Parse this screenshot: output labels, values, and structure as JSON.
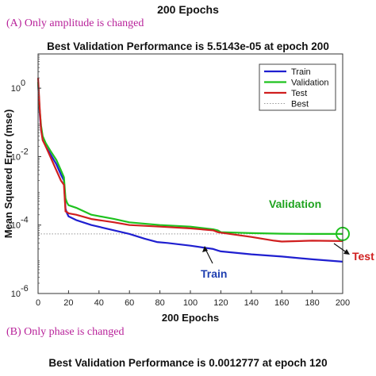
{
  "header": {
    "top_title": "200 Epochs",
    "caption_a": "(A) Only amplitude is changed",
    "caption_b": "(B) Only phase is changed",
    "second_title": "Best Validation Performance is 0.0012777 at epoch 120"
  },
  "chart_data": {
    "type": "line",
    "title": "Best Validation Performance is 5.5143e-05 at epoch 200",
    "xlabel": "200 Epochs",
    "ylabel": "Mean Squared Error  (mse)",
    "xlim": [
      0,
      200
    ],
    "ylim": [
      1e-06,
      10
    ],
    "yscale": "log",
    "x_ticks": [
      0,
      20,
      40,
      60,
      80,
      100,
      120,
      140,
      160,
      180,
      200
    ],
    "y_ticks": [
      {
        "value": 1,
        "label": "10",
        "exp": "0"
      },
      {
        "value": 0.01,
        "label": "10",
        "exp": "-2"
      },
      {
        "value": 0.0001,
        "label": "10",
        "exp": "-4"
      },
      {
        "value": 1e-06,
        "label": "10",
        "exp": "-6"
      }
    ],
    "legend_position": "top-right",
    "best": {
      "epoch": 200,
      "value": 5.5143e-05,
      "name": "Best"
    },
    "series": [
      {
        "name": "Train",
        "color": "#1f1fd0",
        "x": [
          0,
          1,
          2,
          3,
          5,
          8,
          12,
          15,
          17,
          18,
          19,
          20,
          25,
          35,
          50,
          60,
          70,
          78,
          85,
          100,
          115,
          118,
          120,
          140,
          160,
          180,
          200
        ],
        "y": [
          1.5,
          0.2,
          0.06,
          0.035,
          0.02,
          0.012,
          0.006,
          0.003,
          0.002,
          0.0003,
          0.00022,
          0.00018,
          0.00014,
          0.0001,
          7e-05,
          5.5e-05,
          4e-05,
          3.2e-05,
          3e-05,
          2.5e-05,
          2e-05,
          1.8e-05,
          1.7e-05,
          1.4e-05,
          1.2e-05,
          1e-05,
          8.5e-06
        ]
      },
      {
        "name": "Validation",
        "color": "#1fc21f",
        "x": [
          0,
          1,
          2,
          3,
          5,
          8,
          12,
          15,
          17,
          18,
          19,
          20,
          25,
          35,
          50,
          60,
          80,
          100,
          115,
          118,
          120,
          140,
          160,
          180,
          200
        ],
        "y": [
          1.5,
          0.25,
          0.08,
          0.04,
          0.025,
          0.015,
          0.008,
          0.004,
          0.0025,
          0.0006,
          0.00045,
          0.00038,
          0.00032,
          0.0002,
          0.00015,
          0.00012,
          0.0001,
          9e-05,
          7.5e-05,
          7e-05,
          6.2e-05,
          5.8e-05,
          5.6e-05,
          5.5e-05,
          5.5e-05
        ]
      },
      {
        "name": "Test",
        "color": "#d01f1f",
        "x": [
          0,
          1,
          2,
          3,
          5,
          8,
          12,
          15,
          17,
          18,
          19,
          20,
          25,
          35,
          50,
          60,
          80,
          100,
          115,
          118,
          120,
          140,
          155,
          160,
          180,
          200
        ],
        "y": [
          2.0,
          0.3,
          0.06,
          0.03,
          0.02,
          0.01,
          0.004,
          0.002,
          0.0015,
          0.00025,
          0.00024,
          0.00022,
          0.0002,
          0.00015,
          0.00012,
          0.0001,
          9e-05,
          8e-05,
          7e-05,
          6.2e-05,
          6e-05,
          4.5e-05,
          3.5e-05,
          3.3e-05,
          3.5e-05,
          3.4e-05
        ]
      }
    ],
    "annotations": [
      {
        "text": "Validation",
        "color": "#1fa31f"
      },
      {
        "text": "Train",
        "color": "#1f3fb0"
      },
      {
        "text": "Test",
        "color": "#d01f1f"
      }
    ]
  }
}
